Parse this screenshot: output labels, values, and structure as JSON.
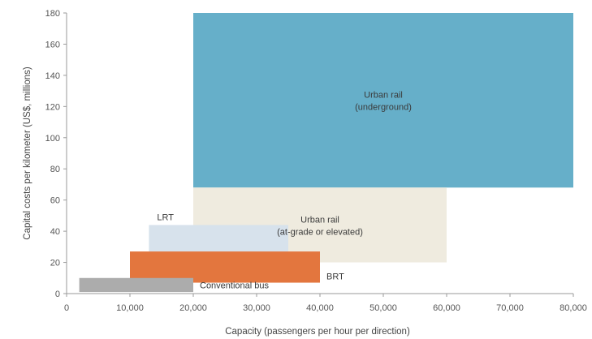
{
  "chart_data": {
    "type": "range-bar",
    "xlabel": "Capacity (passengers per hour per direction)",
    "ylabel": "Capital costs per kilometer (US$, millions)",
    "xlim": [
      0,
      80000
    ],
    "ylim": [
      0,
      180
    ],
    "x_ticks": [
      0,
      10000,
      20000,
      30000,
      40000,
      50000,
      60000,
      70000,
      80000
    ],
    "x_tick_labels": [
      "0",
      "10,000",
      "20,000",
      "30,000",
      "40,000",
      "50,000",
      "60,000",
      "70,000",
      "80,000"
    ],
    "y_ticks": [
      0,
      20,
      40,
      60,
      80,
      100,
      120,
      140,
      160,
      180
    ],
    "y_tick_labels": [
      "0",
      "20",
      "40",
      "60",
      "80",
      "100",
      "120",
      "140",
      "160",
      "180"
    ],
    "grid": false,
    "series": [
      {
        "name": "Urban rail (underground)",
        "label_lines": [
          "Urban rail",
          "(underground)"
        ],
        "label_pos": "inside",
        "x_range": [
          20000,
          80000
        ],
        "y_range": [
          68,
          180
        ],
        "color": "#66afc9"
      },
      {
        "name": "Urban rail (at-grade or elevated)",
        "label_lines": [
          "Urban rail",
          "(at-grade or elevated)"
        ],
        "label_pos": "inside",
        "x_range": [
          20000,
          60000
        ],
        "y_range": [
          20,
          68
        ],
        "color": "#efebdf"
      },
      {
        "name": "LRT",
        "label_lines": [
          "LRT"
        ],
        "label_pos": "above-left",
        "x_range": [
          13000,
          35000
        ],
        "y_range": [
          25,
          44
        ],
        "color": "#d7e2ec"
      },
      {
        "name": "BRT",
        "label_lines": [
          "BRT"
        ],
        "label_pos": "right",
        "x_range": [
          10000,
          40000
        ],
        "y_range": [
          7,
          27
        ],
        "color": "#e3763e"
      },
      {
        "name": "Conventional bus",
        "label_lines": [
          "Conventional bus"
        ],
        "label_pos": "right-inline",
        "x_range": [
          2000,
          20000
        ],
        "y_range": [
          1,
          10
        ],
        "color": "#acacac"
      }
    ]
  }
}
